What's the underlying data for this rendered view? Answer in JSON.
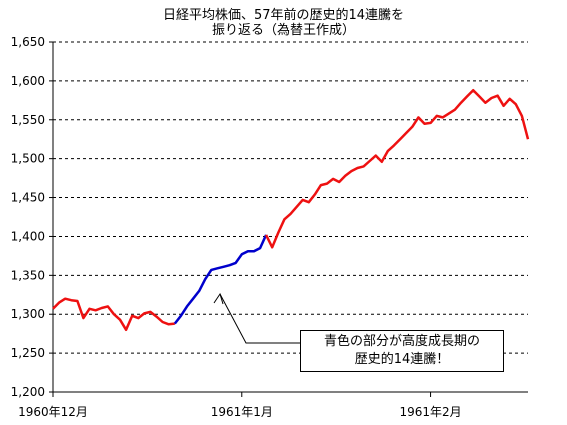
{
  "chart_data": {
    "type": "line",
    "title_line1": "日経平均株価、57年前の歴史的14連騰を",
    "title_line2": "振り返る（為替王作成）",
    "ylim": [
      1200,
      1650
    ],
    "yticks": [
      "1,200",
      "1,250",
      "1,300",
      "1,350",
      "1,400",
      "1,450",
      "1,500",
      "1,550",
      "1,600",
      "1,650"
    ],
    "xticks": [
      "1960年12月",
      "1961年1月",
      "1961年2月"
    ],
    "grid": "horizontal dashed",
    "annotation": {
      "line1": "青色の部分が高度成長期の",
      "line2": "歴史的14連騰！"
    },
    "colors": {
      "highlight": "#0000cc",
      "normal": "#ee1111"
    },
    "series": [
      {
        "color_key": "normal",
        "x": [
          0,
          1,
          2,
          3,
          4,
          5,
          6,
          7,
          8,
          9,
          10,
          11,
          12,
          13,
          14,
          15,
          16,
          17,
          18,
          19,
          20
        ],
        "values": [
          1307,
          1315,
          1320,
          1318,
          1317,
          1295,
          1307,
          1305,
          1308,
          1310,
          1300,
          1293,
          1280,
          1298,
          1295,
          1301,
          1303,
          1297,
          1290,
          1287,
          1288
        ]
      },
      {
        "color_key": "highlight",
        "x": [
          20,
          21,
          22,
          23,
          24,
          25,
          26,
          27,
          28,
          29,
          30,
          31,
          32,
          33,
          34,
          35
        ],
        "values": [
          1288,
          1298,
          1310,
          1320,
          1330,
          1345,
          1357,
          1359,
          1361,
          1363,
          1366,
          1377,
          1381,
          1381,
          1385,
          1402
        ]
      },
      {
        "color_key": "normal",
        "x": [
          35,
          36,
          37,
          38,
          39,
          40,
          41,
          42,
          43,
          44,
          45,
          46,
          47,
          48,
          49,
          50,
          51,
          52,
          53,
          54,
          55,
          56,
          57,
          58,
          59,
          60,
          61,
          62,
          63,
          64,
          65,
          66,
          67,
          68,
          69,
          70,
          71,
          72,
          73,
          74,
          75,
          76,
          77,
          78
        ],
        "values": [
          1402,
          1386,
          1405,
          1422,
          1429,
          1438,
          1447,
          1444,
          1454,
          1466,
          1468,
          1474,
          1470,
          1478,
          1484,
          1488,
          1490,
          1497,
          1504,
          1496,
          1510,
          1517,
          1525,
          1533,
          1541,
          1553,
          1545,
          1546,
          1555,
          1553,
          1558,
          1563,
          1572,
          1580,
          1588,
          1580,
          1572,
          1578,
          1581,
          1568,
          1577,
          1570,
          1555,
          1525
        ]
      }
    ]
  }
}
